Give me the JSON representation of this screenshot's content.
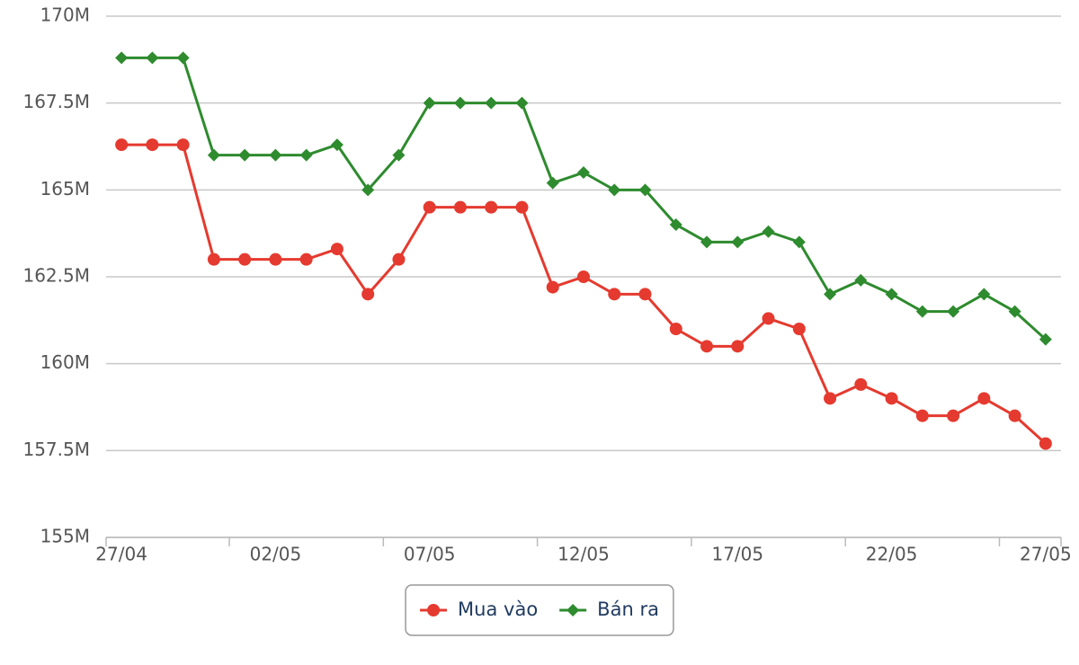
{
  "chart_data": {
    "type": "line",
    "categories": [
      "27/04",
      null,
      null,
      null,
      null,
      "02/05",
      null,
      null,
      null,
      null,
      "07/05",
      null,
      null,
      null,
      null,
      "12/05",
      null,
      null,
      null,
      null,
      "17/05",
      null,
      null,
      null,
      null,
      "22/05",
      null,
      null,
      null,
      null,
      "27/05"
    ],
    "series": [
      {
        "name": "Mua vào",
        "color": "#e53a2f",
        "marker": "circle",
        "values": [
          166300000,
          166300000,
          166300000,
          163000000,
          163000000,
          163000000,
          163000000,
          163300000,
          162000000,
          163000000,
          164500000,
          164500000,
          164500000,
          164500000,
          162200000,
          162500000,
          162000000,
          162000000,
          161000000,
          160500000,
          160500000,
          161300000,
          161000000,
          159000000,
          159400000,
          159000000,
          158500000,
          158500000,
          159000000,
          158500000,
          157700000
        ]
      },
      {
        "name": "Bán ra",
        "color": "#2e8b2e",
        "marker": "diamond",
        "values": [
          168800000,
          168800000,
          168800000,
          166000000,
          166000000,
          166000000,
          166000000,
          166300000,
          165000000,
          166000000,
          167500000,
          167500000,
          167500000,
          167500000,
          165200000,
          165500000,
          165000000,
          165000000,
          164000000,
          163500000,
          163500000,
          163800000,
          163500000,
          162000000,
          162400000,
          162000000,
          161500000,
          161500000,
          162000000,
          161500000,
          160700000
        ]
      }
    ],
    "ylim": [
      155000000,
      170000000
    ],
    "yticks": [
      {
        "value": 155000000,
        "label": "155M"
      },
      {
        "value": 157500000,
        "label": "157.5M"
      },
      {
        "value": 160000000,
        "label": "160M"
      },
      {
        "value": 162500000,
        "label": "162.5M"
      },
      {
        "value": 165000000,
        "label": "165M"
      },
      {
        "value": 167500000,
        "label": "167.5M"
      },
      {
        "value": 170000000,
        "label": "170M"
      }
    ],
    "grid": true,
    "legend": "bottom"
  }
}
